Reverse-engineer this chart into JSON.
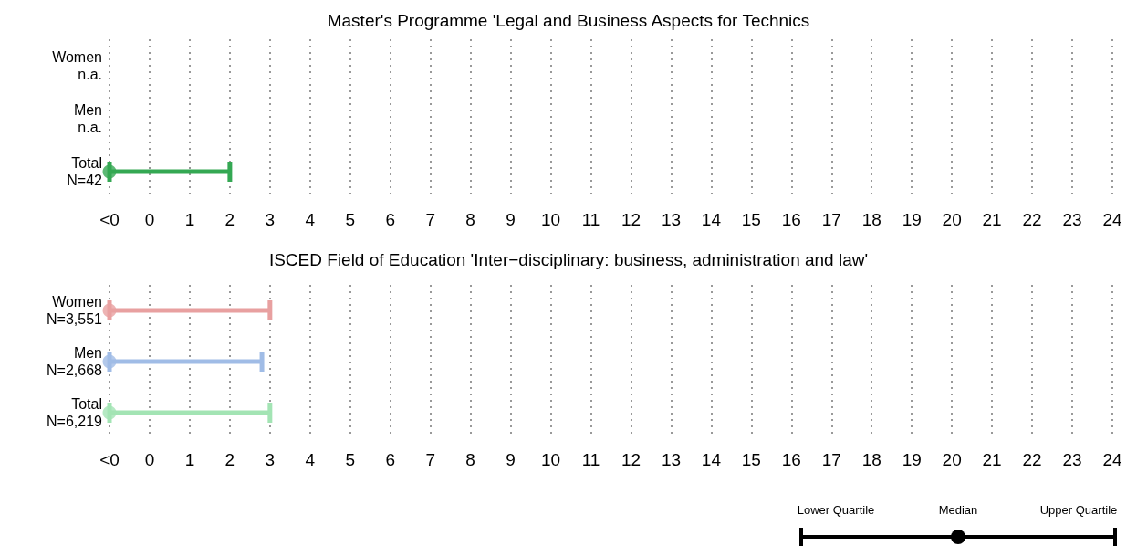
{
  "chart_data": [
    {
      "type": "scatter",
      "orientation": "horizontal",
      "title": "Master's Programme 'Legal and Business Aspects for Technics",
      "categories": [
        "Women\nn.a.",
        "Men\nn.a.",
        "Total\nN=42"
      ],
      "series": [
        {
          "colors": [
            null,
            null,
            "#34a853"
          ],
          "values": [
            null,
            null,
            -1
          ],
          "errors": [
            null,
            null,
            [
              -1,
              2
            ]
          ]
        }
      ],
      "xlim": [
        -1,
        24
      ],
      "xticks": [
        {
          "value": -1,
          "label": "<0"
        },
        0,
        1,
        2,
        3,
        4,
        5,
        6,
        7,
        8,
        9,
        10,
        11,
        12,
        13,
        14,
        15,
        16,
        17,
        18,
        19,
        20,
        21,
        22,
        23,
        24
      ],
      "grid": "x",
      "marker": "circle"
    },
    {
      "type": "scatter",
      "orientation": "horizontal",
      "title": "ISCED Field of Education 'Inter−disciplinary: business, administration and law'",
      "categories": [
        "Women\nN=3,551",
        "Men\nN=2,668",
        "Total\nN=6,219"
      ],
      "series": [
        {
          "colors": [
            "#e8a0a0",
            "#a0bce6",
            "#a3e4b4"
          ],
          "values": [
            -1,
            -1,
            -1
          ],
          "errors": [
            [
              -1,
              3
            ],
            [
              -1,
              2.8
            ],
            [
              -1,
              3
            ]
          ]
        }
      ],
      "xlim": [
        -1,
        24
      ],
      "xticks": [
        {
          "value": -1,
          "label": "<0"
        },
        0,
        1,
        2,
        3,
        4,
        5,
        6,
        7,
        8,
        9,
        10,
        11,
        12,
        13,
        14,
        15,
        16,
        17,
        18,
        19,
        20,
        21,
        22,
        23,
        24
      ],
      "grid": "x",
      "marker": "circle",
      "annotations": [
        "Lower Quartile",
        "Median",
        "Upper Quartile"
      ]
    }
  ]
}
